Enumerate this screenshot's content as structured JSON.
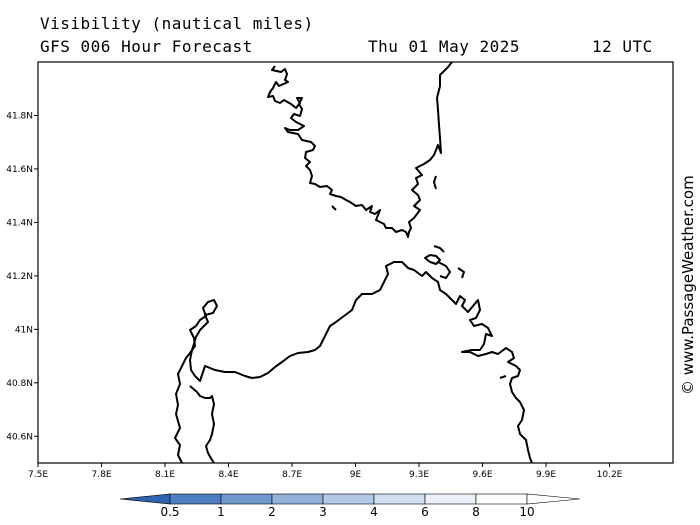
{
  "header": {
    "title": "Visibility (nautical miles)",
    "subtitle": "GFS 006 Hour Forecast",
    "date": "Thu 01 May 2025",
    "time": "12 UTC"
  },
  "map": {
    "lon_range": [
      7.5,
      10.5
    ],
    "lat_range": [
      40.5,
      42.0
    ],
    "lon_ticks": [
      {
        "value": 7.5,
        "label": "7.5E"
      },
      {
        "value": 7.8,
        "label": "7.8E"
      },
      {
        "value": 8.1,
        "label": "8.1E"
      },
      {
        "value": 8.4,
        "label": "8.4E"
      },
      {
        "value": 8.7,
        "label": "8.7E"
      },
      {
        "value": 9.0,
        "label": "9E"
      },
      {
        "value": 9.3,
        "label": "9.3E"
      },
      {
        "value": 9.6,
        "label": "9.6E"
      },
      {
        "value": 9.9,
        "label": "9.9E"
      },
      {
        "value": 10.2,
        "label": "10.2E"
      }
    ],
    "lat_ticks": [
      {
        "value": 41.8,
        "label": "41.8N"
      },
      {
        "value": 41.6,
        "label": "41.6N"
      },
      {
        "value": 41.4,
        "label": "41.4N"
      },
      {
        "value": 41.2,
        "label": "41.2N"
      },
      {
        "value": 41.0,
        "label": "41N"
      },
      {
        "value": 40.8,
        "label": "40.8N"
      },
      {
        "value": 40.6,
        "label": "40.6N"
      }
    ]
  },
  "legend": {
    "labels": [
      "0.5",
      "1",
      "2",
      "3",
      "4",
      "6",
      "8",
      "10"
    ],
    "colors": [
      "#2d64b0",
      "#4d7fc2",
      "#6f98cf",
      "#92b2dc",
      "#b2c8e6",
      "#d2e0f0",
      "#e9f0f8",
      "#ffffff"
    ]
  },
  "watermark": "© www.PassageWeather.com"
}
